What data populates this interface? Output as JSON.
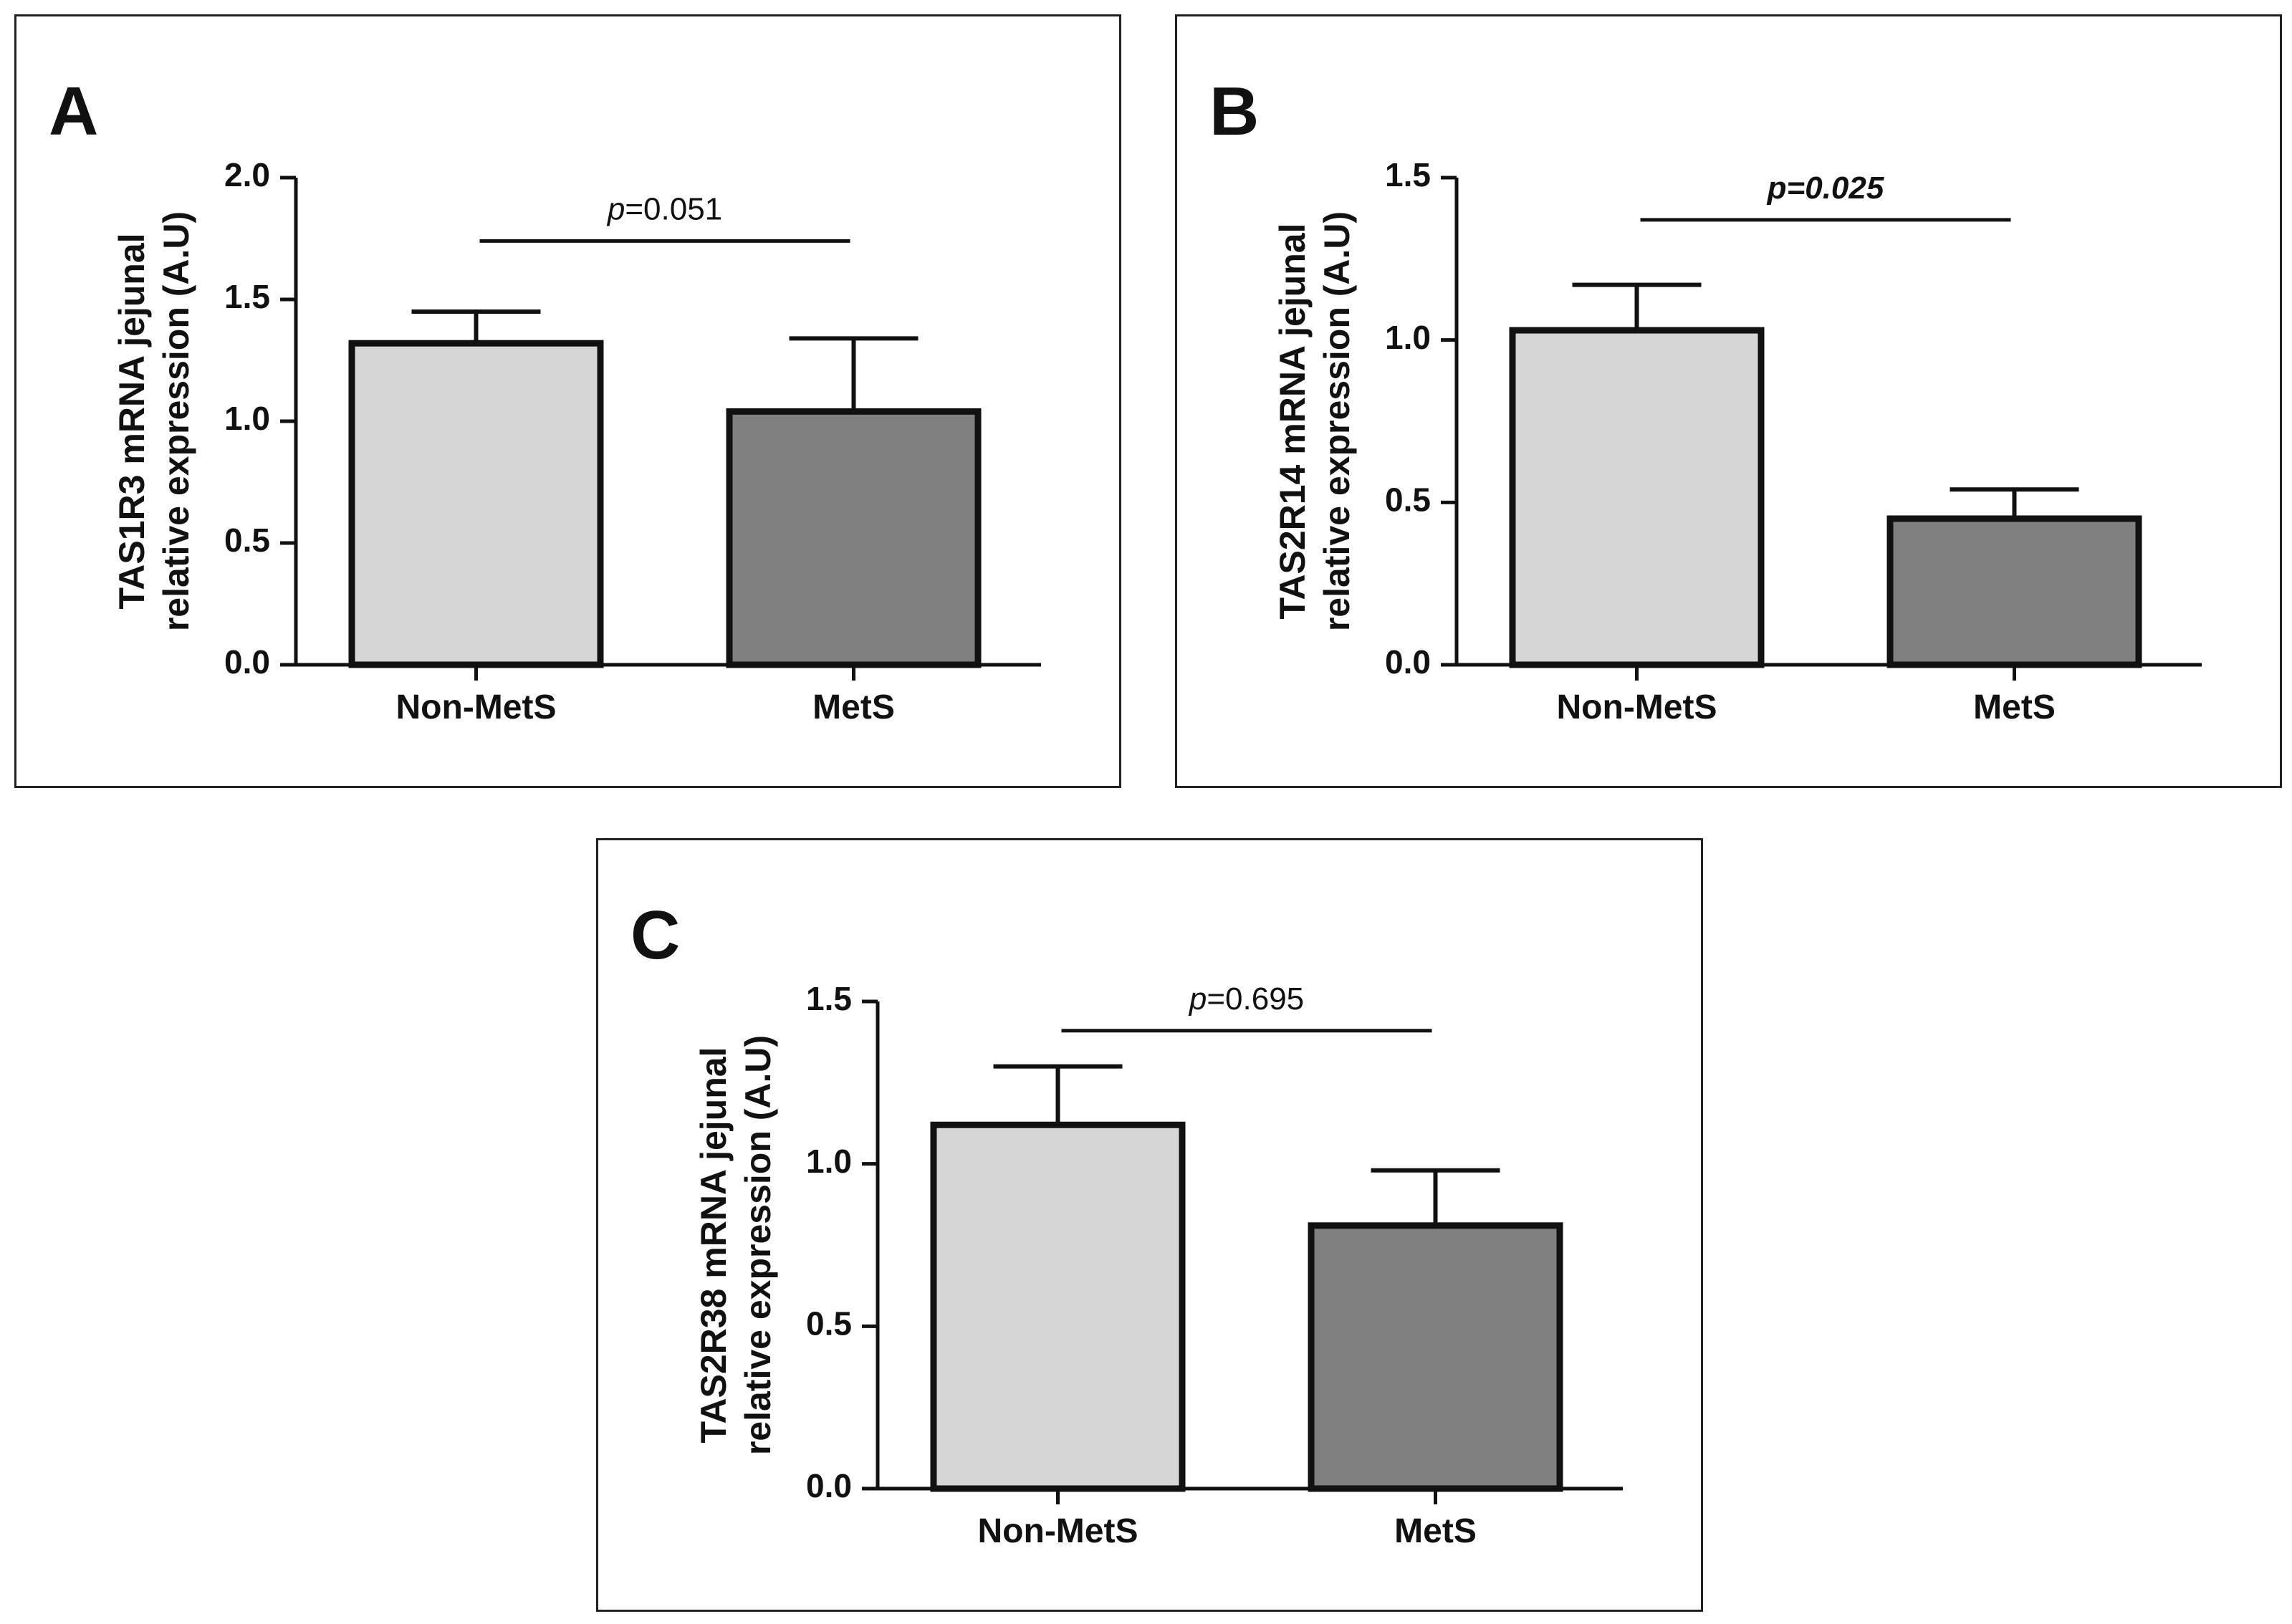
{
  "chart_data": [
    {
      "panel_label": "A",
      "type": "bar",
      "categories": [
        "Non-MetS",
        "MetS"
      ],
      "values": [
        1.32,
        1.04
      ],
      "error_upper": [
        1.45,
        1.34
      ],
      "ylabel_line1": "TAS1R3 mRNA jejunal",
      "ylabel_line2": "relative expression (A.U)",
      "ylim": [
        0,
        2.0
      ],
      "yticks": [
        0.0,
        0.5,
        1.0,
        1.5,
        2.0
      ],
      "ytick_labels": [
        "0.0",
        "0.5",
        "1.0",
        "1.5",
        "2.0"
      ],
      "significance_bracket_y": 1.74,
      "pvalue_prefix": "p",
      "pvalue_rest": "=0.051",
      "pvalue_bold_italic": false,
      "bar_colors": [
        "#d6d6d6",
        "#808080"
      ]
    },
    {
      "panel_label": "B",
      "type": "bar",
      "categories": [
        "Non-MetS",
        "MetS"
      ],
      "values": [
        1.03,
        0.45
      ],
      "error_upper": [
        1.17,
        0.54
      ],
      "ylabel_line1": "TAS2R14 mRNA jejunal",
      "ylabel_line2": "relative expression (A.U)",
      "ylim": [
        0,
        1.5
      ],
      "yticks": [
        0.0,
        0.5,
        1.0,
        1.5
      ],
      "ytick_labels": [
        "0.0",
        "0.5",
        "1.0",
        "1.5"
      ],
      "significance_bracket_y": 1.37,
      "pvalue_prefix": "p",
      "pvalue_rest": "=0.025",
      "pvalue_bold_italic": true,
      "bar_colors": [
        "#d6d6d6",
        "#808080"
      ]
    },
    {
      "panel_label": "C",
      "type": "bar",
      "categories": [
        "Non-MetS",
        "MetS"
      ],
      "values": [
        1.12,
        0.81
      ],
      "error_upper": [
        1.3,
        0.98
      ],
      "ylabel_line1": "TAS2R38 mRNA jejunal",
      "ylabel_line2": "relative expression (A.U)",
      "ylim": [
        0,
        1.5
      ],
      "yticks": [
        0.0,
        0.5,
        1.0,
        1.5
      ],
      "ytick_labels": [
        "0.0",
        "0.5",
        "1.0",
        "1.5"
      ],
      "significance_bracket_y": 1.41,
      "pvalue_prefix": "p",
      "pvalue_rest": "=0.695",
      "pvalue_bold_italic": false,
      "bar_colors": [
        "#d6d6d6",
        "#808080"
      ]
    }
  ]
}
